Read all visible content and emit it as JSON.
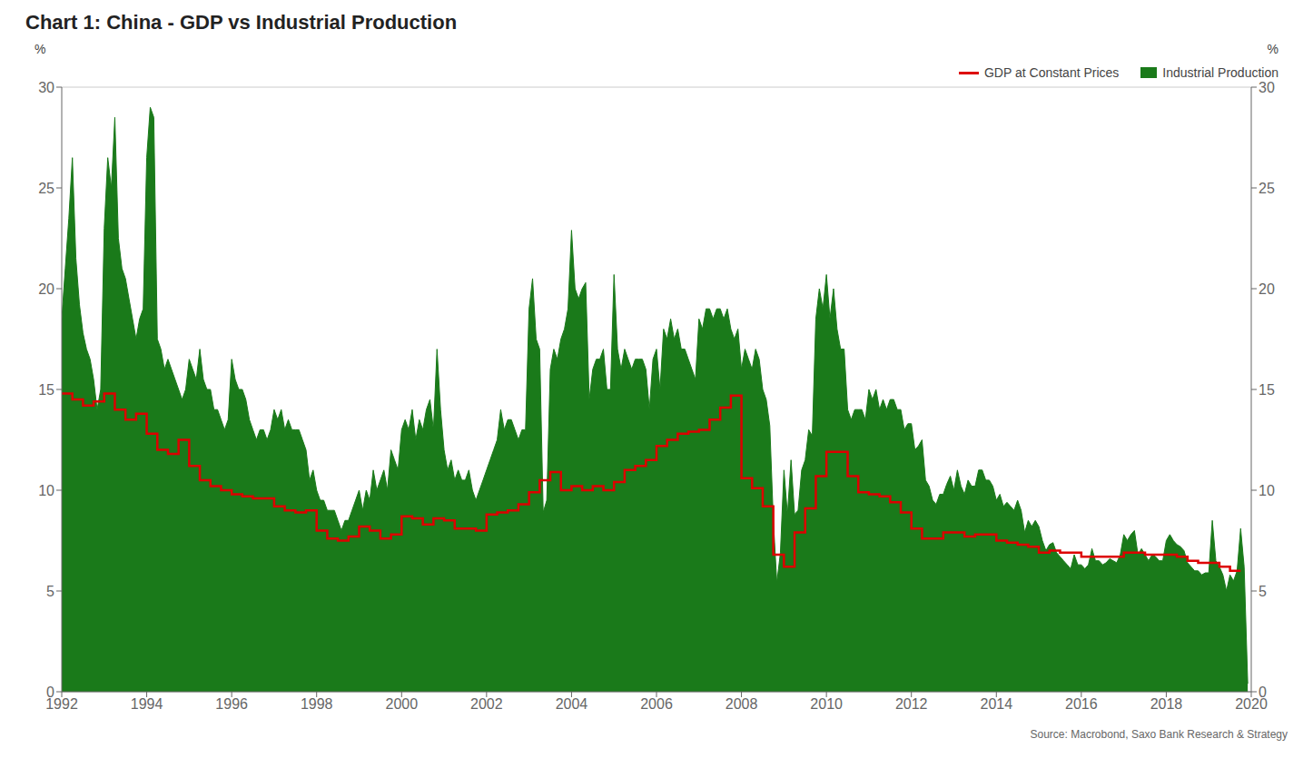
{
  "chart_data": {
    "type": "line",
    "title": "Chart 1: China - GDP vs Industrial Production",
    "y_label": "%",
    "y2_label": "%",
    "annotations": [
      "Source: Macrobond, Saxo Bank Research & Strategy"
    ],
    "xlim": [
      1992,
      2020
    ],
    "xticks": [
      1992,
      1994,
      1996,
      1998,
      2000,
      2002,
      2004,
      2006,
      2008,
      2010,
      2012,
      2014,
      2016,
      2018,
      2020
    ],
    "ylim": [
      0,
      30
    ],
    "yticks": [
      0,
      5,
      10,
      15,
      20,
      25,
      30
    ],
    "y2lim": [
      0,
      30
    ],
    "y2ticks": [
      0,
      5,
      10,
      15,
      20,
      25,
      30
    ],
    "grid": "y",
    "legend": "top-right",
    "series": [
      {
        "name": "GDP at Constant Prices",
        "type": "step",
        "color": "#dd0000",
        "line_style": "solid",
        "x": [
          1992.0,
          1992.25,
          1992.5,
          1992.75,
          1993.0,
          1993.25,
          1993.5,
          1993.75,
          1994.0,
          1994.25,
          1994.5,
          1994.75,
          1995.0,
          1995.25,
          1995.5,
          1995.75,
          1996.0,
          1996.25,
          1996.5,
          1996.75,
          1997.0,
          1997.25,
          1997.5,
          1997.75,
          1998.0,
          1998.25,
          1998.5,
          1998.75,
          1999.0,
          1999.25,
          1999.5,
          1999.75,
          2000.0,
          2000.25,
          2000.5,
          2000.75,
          2001.0,
          2001.25,
          2001.5,
          2001.75,
          2002.0,
          2002.25,
          2002.5,
          2002.75,
          2003.0,
          2003.25,
          2003.5,
          2003.75,
          2004.0,
          2004.25,
          2004.5,
          2004.75,
          2005.0,
          2005.25,
          2005.5,
          2005.75,
          2006.0,
          2006.25,
          2006.5,
          2006.75,
          2007.0,
          2007.25,
          2007.5,
          2007.75,
          2008.0,
          2008.25,
          2008.5,
          2008.75,
          2009.0,
          2009.25,
          2009.5,
          2009.75,
          2010.0,
          2010.25,
          2010.5,
          2010.75,
          2011.0,
          2011.25,
          2011.5,
          2011.75,
          2012.0,
          2012.25,
          2012.5,
          2012.75,
          2013.0,
          2013.25,
          2013.5,
          2013.75,
          2014.0,
          2014.25,
          2014.5,
          2014.75,
          2015.0,
          2015.25,
          2015.5,
          2015.75,
          2016.0,
          2016.25,
          2016.5,
          2016.75,
          2017.0,
          2017.25,
          2017.5,
          2017.75,
          2018.0,
          2018.25,
          2018.5,
          2018.75,
          2019.0,
          2019.25,
          2019.5,
          2019.75
        ],
        "values": [
          14.8,
          14.5,
          14.2,
          14.4,
          14.8,
          14.0,
          13.5,
          13.8,
          12.8,
          12.0,
          11.8,
          12.5,
          11.2,
          10.5,
          10.2,
          10.0,
          9.8,
          9.7,
          9.6,
          9.6,
          9.2,
          9.0,
          8.9,
          9.0,
          8.0,
          7.6,
          7.5,
          7.7,
          8.2,
          8.0,
          7.6,
          7.8,
          8.7,
          8.6,
          8.3,
          8.6,
          8.5,
          8.1,
          8.1,
          8.0,
          8.8,
          8.9,
          9.0,
          9.3,
          9.9,
          10.5,
          10.9,
          10.0,
          10.2,
          10.0,
          10.2,
          10.0,
          10.4,
          11.0,
          11.2,
          11.5,
          12.2,
          12.5,
          12.8,
          12.9,
          13.0,
          13.5,
          14.1,
          14.7,
          10.6,
          10.1,
          9.2,
          6.8,
          6.2,
          7.9,
          9.1,
          10.7,
          11.9,
          11.9,
          10.7,
          9.9,
          9.8,
          9.7,
          9.4,
          8.9,
          8.1,
          7.6,
          7.6,
          7.9,
          7.9,
          7.7,
          7.8,
          7.8,
          7.5,
          7.4,
          7.3,
          7.2,
          6.9,
          7.0,
          6.9,
          6.9,
          6.7,
          6.7,
          6.7,
          6.7,
          6.9,
          6.9,
          6.8,
          6.8,
          6.8,
          6.7,
          6.5,
          6.4,
          6.4,
          6.2,
          6.0,
          6.0
        ]
      },
      {
        "name": "Industrial Production",
        "type": "area",
        "color": "#1a7a1a",
        "x": [
          1992.0,
          1992.083,
          1992.167,
          1992.25,
          1992.333,
          1992.417,
          1992.5,
          1992.583,
          1992.667,
          1992.75,
          1992.833,
          1992.917,
          1993.0,
          1993.083,
          1993.167,
          1993.25,
          1993.333,
          1993.417,
          1993.5,
          1993.583,
          1993.667,
          1993.75,
          1993.833,
          1993.917,
          1994.0,
          1994.083,
          1994.167,
          1994.25,
          1994.333,
          1994.417,
          1994.5,
          1994.583,
          1994.667,
          1994.75,
          1994.833,
          1994.917,
          1995.0,
          1995.083,
          1995.167,
          1995.25,
          1995.333,
          1995.417,
          1995.5,
          1995.583,
          1995.667,
          1995.75,
          1995.833,
          1995.917,
          1996.0,
          1996.083,
          1996.167,
          1996.25,
          1996.333,
          1996.417,
          1996.5,
          1996.583,
          1996.667,
          1996.75,
          1996.833,
          1996.917,
          1997.0,
          1997.083,
          1997.167,
          1997.25,
          1997.333,
          1997.417,
          1997.5,
          1997.583,
          1997.667,
          1997.75,
          1997.833,
          1997.917,
          1998.0,
          1998.083,
          1998.167,
          1998.25,
          1998.333,
          1998.417,
          1998.5,
          1998.583,
          1998.667,
          1998.75,
          1998.833,
          1998.917,
          1999.0,
          1999.083,
          1999.167,
          1999.25,
          1999.333,
          1999.417,
          1999.5,
          1999.583,
          1999.667,
          1999.75,
          1999.833,
          1999.917,
          2000.0,
          2000.083,
          2000.167,
          2000.25,
          2000.333,
          2000.417,
          2000.5,
          2000.583,
          2000.667,
          2000.75,
          2000.833,
          2000.917,
          2001.0,
          2001.083,
          2001.167,
          2001.25,
          2001.333,
          2001.417,
          2001.5,
          2001.583,
          2001.667,
          2001.75,
          2001.833,
          2001.917,
          2002.0,
          2002.083,
          2002.167,
          2002.25,
          2002.333,
          2002.417,
          2002.5,
          2002.583,
          2002.667,
          2002.75,
          2002.833,
          2002.917,
          2003.0,
          2003.083,
          2003.167,
          2003.25,
          2003.333,
          2003.417,
          2003.5,
          2003.583,
          2003.667,
          2003.75,
          2003.833,
          2003.917,
          2004.0,
          2004.083,
          2004.167,
          2004.25,
          2004.333,
          2004.417,
          2004.5,
          2004.583,
          2004.667,
          2004.75,
          2004.833,
          2004.917,
          2005.0,
          2005.083,
          2005.167,
          2005.25,
          2005.333,
          2005.417,
          2005.5,
          2005.583,
          2005.667,
          2005.75,
          2005.833,
          2005.917,
          2006.0,
          2006.083,
          2006.167,
          2006.25,
          2006.333,
          2006.417,
          2006.5,
          2006.583,
          2006.667,
          2006.75,
          2006.833,
          2006.917,
          2007.0,
          2007.083,
          2007.167,
          2007.25,
          2007.333,
          2007.417,
          2007.5,
          2007.583,
          2007.667,
          2007.75,
          2007.833,
          2007.917,
          2008.0,
          2008.083,
          2008.167,
          2008.25,
          2008.333,
          2008.417,
          2008.5,
          2008.583,
          2008.667,
          2008.75,
          2008.833,
          2008.917,
          2009.0,
          2009.083,
          2009.167,
          2009.25,
          2009.333,
          2009.417,
          2009.5,
          2009.583,
          2009.667,
          2009.75,
          2009.833,
          2009.917,
          2010.0,
          2010.083,
          2010.167,
          2010.25,
          2010.333,
          2010.417,
          2010.5,
          2010.583,
          2010.667,
          2010.75,
          2010.833,
          2010.917,
          2011.0,
          2011.083,
          2011.167,
          2011.25,
          2011.333,
          2011.417,
          2011.5,
          2011.583,
          2011.667,
          2011.75,
          2011.833,
          2011.917,
          2012.0,
          2012.083,
          2012.167,
          2012.25,
          2012.333,
          2012.417,
          2012.5,
          2012.583,
          2012.667,
          2012.75,
          2012.833,
          2012.917,
          2013.0,
          2013.083,
          2013.167,
          2013.25,
          2013.333,
          2013.417,
          2013.5,
          2013.583,
          2013.667,
          2013.75,
          2013.833,
          2013.917,
          2014.0,
          2014.083,
          2014.167,
          2014.25,
          2014.333,
          2014.417,
          2014.5,
          2014.583,
          2014.667,
          2014.75,
          2014.833,
          2014.917,
          2015.0,
          2015.083,
          2015.167,
          2015.25,
          2015.333,
          2015.417,
          2015.5,
          2015.583,
          2015.667,
          2015.75,
          2015.833,
          2015.917,
          2016.0,
          2016.083,
          2016.167,
          2016.25,
          2016.333,
          2016.417,
          2016.5,
          2016.583,
          2016.667,
          2016.75,
          2016.833,
          2016.917,
          2017.0,
          2017.083,
          2017.167,
          2017.25,
          2017.333,
          2017.417,
          2017.5,
          2017.583,
          2017.667,
          2017.75,
          2017.833,
          2017.917,
          2018.0,
          2018.083,
          2018.167,
          2018.25,
          2018.333,
          2018.417,
          2018.5,
          2018.583,
          2018.667,
          2018.75,
          2018.833,
          2018.917,
          2019.0,
          2019.083,
          2019.167,
          2019.25,
          2019.333,
          2019.417,
          2019.5,
          2019.583,
          2019.667,
          2019.75,
          2019.833,
          2019.917
        ],
        "values": [
          18.5,
          21.0,
          23.5,
          26.5,
          21.5,
          19.2,
          17.8,
          17.0,
          16.5,
          15.5,
          14.0,
          15.0,
          23.0,
          26.5,
          25.0,
          28.5,
          22.5,
          21.0,
          20.5,
          19.5,
          18.5,
          17.5,
          18.5,
          19.0,
          26.5,
          29.0,
          28.5,
          17.5,
          17.0,
          16.0,
          16.5,
          16.0,
          15.5,
          15.0,
          14.5,
          15.0,
          16.5,
          16.0,
          15.5,
          17.0,
          15.5,
          15.0,
          15.0,
          14.0,
          14.0,
          13.5,
          13.0,
          13.5,
          16.5,
          15.5,
          15.0,
          15.0,
          14.5,
          13.5,
          13.0,
          12.5,
          13.0,
          13.0,
          12.5,
          13.0,
          14.0,
          13.5,
          14.0,
          13.0,
          13.5,
          13.0,
          13.0,
          13.0,
          12.5,
          12.0,
          10.5,
          11.0,
          10.0,
          9.5,
          9.5,
          9.0,
          9.0,
          9.0,
          8.5,
          8.0,
          8.5,
          8.5,
          9.0,
          9.5,
          10.0,
          9.0,
          10.0,
          9.5,
          11.0,
          10.0,
          10.5,
          11.0,
          10.0,
          12.0,
          11.5,
          11.0,
          13.0,
          13.5,
          13.0,
          14.0,
          12.5,
          13.5,
          13.0,
          14.0,
          14.5,
          13.0,
          17.0,
          14.0,
          12.0,
          11.0,
          11.5,
          10.5,
          11.0,
          10.5,
          10.5,
          11.0,
          10.0,
          9.5,
          10.0,
          10.5,
          11.0,
          11.5,
          12.0,
          12.5,
          14.0,
          13.0,
          13.5,
          13.5,
          13.0,
          12.5,
          13.0,
          13.0,
          19.0,
          20.5,
          17.5,
          17.0,
          8.9,
          9.5,
          16.0,
          17.0,
          16.5,
          17.5,
          18.0,
          19.0,
          22.9,
          20.0,
          19.5,
          20.0,
          20.3,
          14.5,
          16.0,
          16.5,
          16.5,
          17.0,
          15.0,
          15.0,
          20.7,
          17.0,
          16.0,
          17.0,
          16.5,
          16.0,
          16.5,
          16.5,
          16.5,
          16.0,
          14.0,
          16.5,
          17.0,
          15.0,
          18.0,
          17.5,
          18.5,
          17.5,
          18.0,
          17.0,
          17.0,
          16.5,
          16.0,
          15.5,
          18.5,
          18.0,
          19.0,
          19.0,
          18.5,
          19.0,
          19.0,
          18.5,
          19.0,
          18.0,
          17.5,
          18.0,
          16.0,
          17.0,
          16.5,
          16.0,
          17.0,
          16.5,
          15.0,
          14.5,
          13.2,
          8.5,
          5.4,
          6.9,
          11.0,
          8.8,
          11.5,
          8.8,
          9.0,
          11.0,
          11.5,
          13.0,
          12.7,
          18.5,
          20.0,
          19.0,
          20.7,
          18.5,
          20.0,
          18.0,
          17.0,
          17.0,
          14.0,
          13.5,
          14.0,
          14.0,
          14.0,
          13.5,
          15.0,
          14.5,
          15.0,
          14.0,
          14.5,
          14.0,
          14.5,
          14.5,
          14.0,
          14.0,
          13.0,
          13.3,
          13.3,
          12.0,
          12.2,
          12.5,
          10.5,
          10.2,
          9.5,
          9.3,
          9.8,
          9.8,
          10.3,
          10.7,
          10.0,
          11.0,
          10.2,
          9.8,
          10.5,
          10.2,
          10.2,
          11.0,
          11.0,
          10.5,
          10.5,
          10.2,
          9.5,
          9.8,
          9.2,
          9.4,
          9.2,
          9.0,
          9.5,
          9.0,
          7.9,
          8.5,
          8.2,
          8.5,
          8.2,
          7.5,
          7.0,
          7.3,
          7.4,
          6.9,
          6.7,
          6.5,
          6.3,
          6.1,
          6.8,
          6.3,
          6.3,
          6.1,
          6.3,
          7.1,
          6.5,
          6.5,
          6.3,
          6.4,
          6.6,
          6.5,
          6.4,
          6.8,
          7.8,
          7.5,
          7.8,
          8.0,
          6.8,
          7.1,
          6.8,
          6.5,
          6.8,
          6.7,
          6.5,
          6.5,
          7.5,
          7.8,
          7.5,
          7.3,
          7.2,
          7.0,
          6.4,
          6.2,
          6.0,
          6.0,
          5.8,
          5.9,
          5.9,
          8.5,
          6.5,
          6.2,
          5.8,
          5.0,
          5.8,
          5.5,
          6.0,
          8.1,
          6.2,
          0.4
        ]
      }
    ]
  }
}
